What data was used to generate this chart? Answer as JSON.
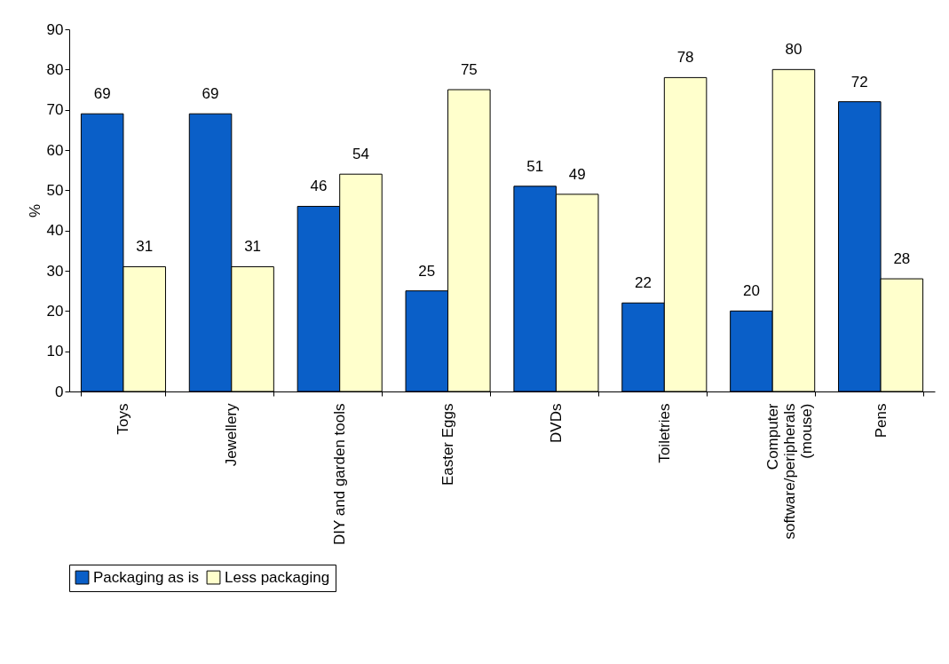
{
  "chart_data": {
    "type": "bar",
    "ylabel": "%",
    "categories": [
      "Toys",
      "Jewellery",
      "DIY and garden tools",
      "Easter Eggs",
      "DVDs",
      "Toiletries",
      "Computer software/peripherals (mouse)",
      "Pens"
    ],
    "series": [
      {
        "name": "Packaging as is",
        "color": "#0a5fc8",
        "values": [
          69,
          69,
          46,
          25,
          51,
          22,
          20,
          72
        ]
      },
      {
        "name": "Less packaging",
        "color": "#ffffcc",
        "values": [
          31,
          31,
          54,
          75,
          49,
          78,
          80,
          28
        ]
      }
    ],
    "ylim": [
      0,
      90
    ],
    "yticks": [
      0,
      10,
      20,
      30,
      40,
      50,
      60,
      70,
      80,
      90
    ],
    "data_labels": true,
    "legend": "bottom",
    "grid": false
  }
}
